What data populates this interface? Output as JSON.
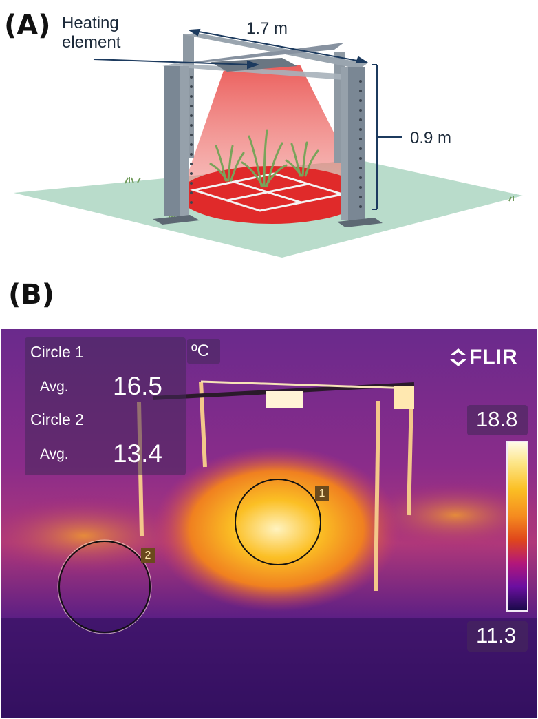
{
  "panel_a": {
    "label": "(A)",
    "heating_label_line1": "Heating",
    "heating_label_line2": "element",
    "width_dimension": "1.7 m",
    "height_dimension": "0.9 m"
  },
  "panel_b": {
    "label": "(B)",
    "circle1_label": "Circle 1",
    "circle1_avg_label": "Avg.",
    "circle1_avg_value": "16.5",
    "circle2_label": "Circle 2",
    "circle2_avg_label": "Avg.",
    "circle2_avg_value": "13.4",
    "unit": "ºC",
    "brand": "FLIR",
    "scale_max": "18.8",
    "scale_min": "11.3",
    "circle1_tag": "1",
    "circle2_tag": "2"
  },
  "colors": {
    "ground": "#b9dccb",
    "frame": "#7a8794",
    "heat_cone": "#e8423f",
    "thermal_base": "#5a1a8c",
    "thermal_hot": "#fbbf24"
  }
}
